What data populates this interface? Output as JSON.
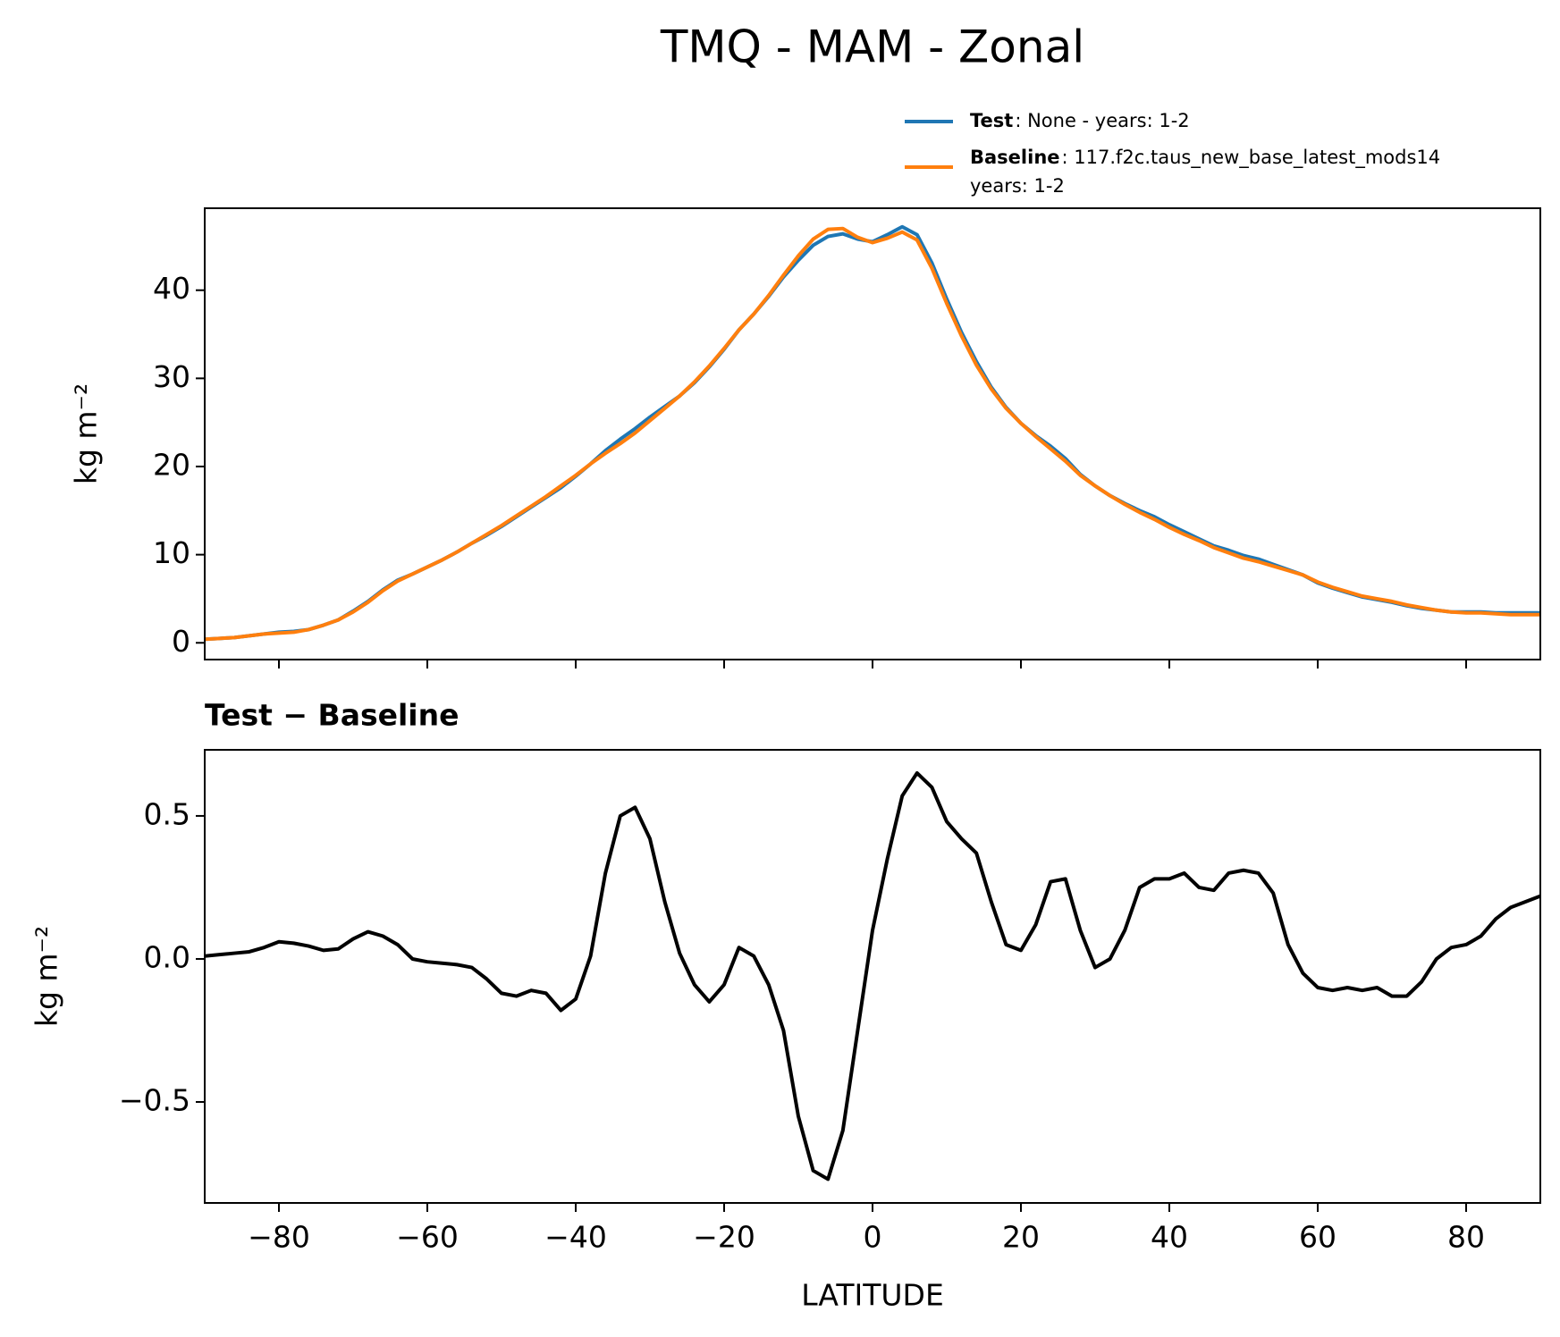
{
  "chart_data": [
    {
      "type": "line",
      "title": "TMQ - MAM - Zonal",
      "ylabel": "kg m⁻²",
      "grid": false,
      "xtick_labels": false,
      "x": [
        -90,
        -88,
        -86,
        -84,
        -82,
        -80,
        -78,
        -76,
        -74,
        -72,
        -70,
        -68,
        -66,
        -64,
        -62,
        -60,
        -58,
        -56,
        -54,
        -52,
        -50,
        -48,
        -46,
        -44,
        -42,
        -40,
        -38,
        -36,
        -34,
        -32,
        -30,
        -28,
        -26,
        -24,
        -22,
        -20,
        -18,
        -16,
        -14,
        -12,
        -10,
        -8,
        -6,
        -4,
        -2,
        0,
        2,
        4,
        6,
        8,
        10,
        12,
        14,
        16,
        18,
        20,
        22,
        24,
        26,
        28,
        30,
        32,
        34,
        36,
        38,
        40,
        42,
        44,
        46,
        48,
        50,
        52,
        54,
        56,
        58,
        60,
        62,
        64,
        66,
        68,
        70,
        72,
        74,
        76,
        78,
        80,
        82,
        84,
        86,
        88,
        90
      ],
      "series": [
        {
          "name": "Test",
          "description": [
            ": None - years: 1-2"
          ],
          "color": "#1f77b4",
          "values": [
            0.4,
            0.5,
            0.6,
            0.8,
            1.0,
            1.2,
            1.3,
            1.5,
            2.0,
            2.6,
            3.6,
            4.7,
            6.0,
            7.1,
            7.8,
            8.6,
            9.4,
            10.3,
            11.3,
            12.2,
            13.2,
            14.3,
            15.4,
            16.5,
            17.6,
            18.9,
            20.3,
            21.8,
            23.1,
            24.3,
            25.6,
            26.8,
            28.0,
            29.5,
            31.3,
            33.3,
            35.5,
            37.3,
            39.3,
            41.5,
            43.4,
            45.1,
            46.1,
            46.4,
            45.8,
            45.5,
            46.3,
            47.2,
            46.3,
            43.1,
            39.0,
            35.2,
            31.9,
            29.0,
            26.7,
            24.9,
            23.5,
            22.3,
            20.9,
            19.1,
            17.8,
            16.7,
            15.8,
            15.0,
            14.3,
            13.4,
            12.6,
            11.8,
            11.0,
            10.5,
            9.9,
            9.5,
            8.9,
            8.3,
            7.7,
            6.8,
            6.2,
            5.7,
            5.2,
            4.9,
            4.6,
            4.2,
            3.9,
            3.7,
            3.5,
            3.5,
            3.5,
            3.4,
            3.4,
            3.4,
            3.4
          ]
        },
        {
          "name": "Baseline",
          "description": [
            ": 117.f2c.taus_new_base_latest_mods14",
            "years: 1-2"
          ],
          "color": "#ff7f0e",
          "values": [
            0.4,
            0.5,
            0.6,
            0.8,
            1.0,
            1.1,
            1.2,
            1.5,
            2.0,
            2.6,
            3.5,
            4.6,
            5.9,
            7.0,
            7.8,
            8.6,
            9.4,
            10.3,
            11.3,
            12.3,
            13.3,
            14.4,
            15.5,
            16.6,
            17.8,
            19.0,
            20.3,
            21.5,
            22.6,
            23.8,
            25.2,
            26.6,
            28.0,
            29.6,
            31.4,
            33.4,
            35.5,
            37.3,
            39.4,
            41.7,
            43.9,
            45.8,
            46.9,
            47.0,
            46.0,
            45.4,
            45.9,
            46.6,
            45.7,
            42.5,
            38.5,
            34.8,
            31.5,
            28.8,
            26.6,
            24.9,
            23.4,
            22.0,
            20.6,
            19.0,
            17.8,
            16.7,
            15.7,
            14.8,
            14.0,
            13.1,
            12.3,
            11.6,
            10.8,
            10.2,
            9.6,
            9.2,
            8.7,
            8.2,
            7.7,
            6.9,
            6.3,
            5.8,
            5.3,
            5.0,
            4.7,
            4.3,
            4.0,
            3.7,
            3.5,
            3.4,
            3.4,
            3.3,
            3.2,
            3.2,
            3.2
          ]
        }
      ],
      "xlim": [
        -90,
        90
      ],
      "ylim": [
        -1.9,
        49.3
      ],
      "xticks": [
        -80,
        -60,
        -40,
        -20,
        0,
        20,
        40,
        60,
        80
      ],
      "yticks": [
        0,
        10,
        20,
        30,
        40
      ]
    },
    {
      "type": "line",
      "subtitle": "Test − Baseline",
      "xlabel": "LATITUDE",
      "ylabel": "kg m⁻²",
      "grid": false,
      "xtick_labels": true,
      "x": [
        -90,
        -88,
        -86,
        -84,
        -82,
        -80,
        -78,
        -76,
        -74,
        -72,
        -70,
        -68,
        -66,
        -64,
        -62,
        -60,
        -58,
        -56,
        -54,
        -52,
        -50,
        -48,
        -46,
        -44,
        -42,
        -40,
        -38,
        -36,
        -34,
        -32,
        -30,
        -28,
        -26,
        -24,
        -22,
        -20,
        -18,
        -16,
        -14,
        -12,
        -10,
        -8,
        -6,
        -4,
        -2,
        0,
        2,
        4,
        6,
        8,
        10,
        12,
        14,
        16,
        18,
        20,
        22,
        24,
        26,
        28,
        30,
        32,
        34,
        36,
        38,
        40,
        42,
        44,
        46,
        48,
        50,
        52,
        54,
        56,
        58,
        60,
        62,
        64,
        66,
        68,
        70,
        72,
        74,
        76,
        78,
        80,
        82,
        84,
        86,
        88,
        90
      ],
      "color": "#000000",
      "values": [
        0.01,
        0.015,
        0.02,
        0.025,
        0.04,
        0.06,
        0.055,
        0.045,
        0.03,
        0.035,
        0.07,
        0.095,
        0.08,
        0.05,
        0.0,
        -0.01,
        -0.015,
        -0.02,
        -0.03,
        -0.07,
        -0.12,
        -0.13,
        -0.11,
        -0.12,
        -0.18,
        -0.14,
        0.01,
        0.3,
        0.5,
        0.53,
        0.42,
        0.2,
        0.02,
        -0.09,
        -0.15,
        -0.09,
        0.04,
        0.01,
        -0.09,
        -0.25,
        -0.55,
        -0.74,
        -0.77,
        -0.6,
        -0.25,
        0.1,
        0.35,
        0.57,
        0.65,
        0.6,
        0.48,
        0.42,
        0.37,
        0.2,
        0.05,
        0.03,
        0.12,
        0.27,
        0.28,
        0.1,
        -0.03,
        0.0,
        0.1,
        0.25,
        0.28,
        0.28,
        0.3,
        0.25,
        0.24,
        0.3,
        0.31,
        0.3,
        0.23,
        0.05,
        -0.05,
        -0.1,
        -0.11,
        -0.1,
        -0.11,
        -0.1,
        -0.13,
        -0.13,
        -0.08,
        0.0,
        0.04,
        0.05,
        0.08,
        0.14,
        0.18,
        0.2,
        0.22
      ],
      "xlim": [
        -90,
        90
      ],
      "ylim": [
        -0.853,
        0.731
      ],
      "xticks": [
        {
          "value": -80,
          "label": "−80"
        },
        {
          "value": -60,
          "label": "−60"
        },
        {
          "value": -40,
          "label": "−40"
        },
        {
          "value": -20,
          "label": "−20"
        },
        0,
        20,
        40,
        60,
        80
      ],
      "yticks": [
        {
          "value": -0.5,
          "label": "−0.5"
        },
        {
          "value": 0,
          "label": "0.0"
        },
        0.5
      ]
    }
  ]
}
